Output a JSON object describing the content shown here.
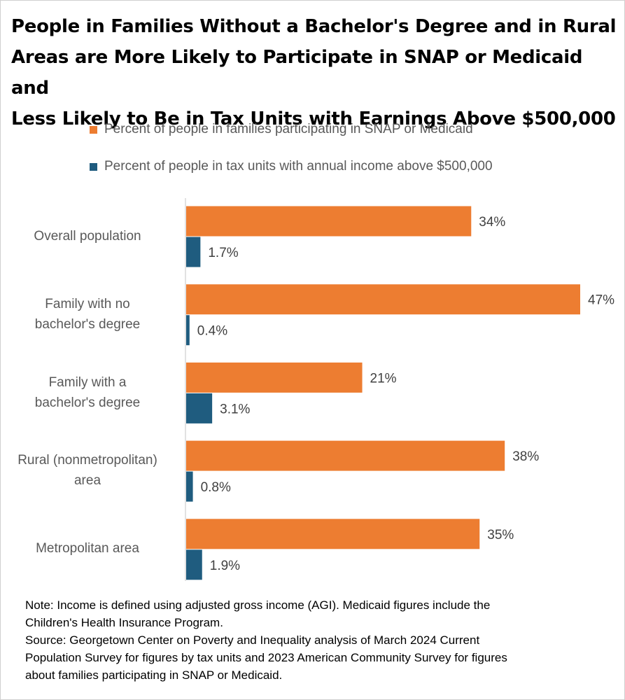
{
  "title_lines": [
    "People in Families Without a Bachelor's Degree and in Rural",
    "Areas are More Likely to Participate in SNAP or Medicaid and",
    "Less Likely to Be in Tax Units with Earnings Above $500,000"
  ],
  "legend": [
    {
      "name": "Percent of people in families participating in SNAP or Medicaid",
      "color": "#ED7D31"
    },
    {
      "name": "Percent of people in tax units with annual income above $500,000",
      "color": "#1F5C7F"
    }
  ],
  "categories_display": [
    [
      "Overall population"
    ],
    [
      "Family with no",
      "bachelor's degree"
    ],
    [
      "Family with a",
      "bachelor's degree"
    ],
    [
      "Rural (nonmetropolitan)",
      "area"
    ],
    [
      "Metropolitan area"
    ]
  ],
  "note_lines": [
    "Note: Income is defined using adjusted gross income (AGI). Medicaid figures include the",
    "Children's Health Insurance Program.",
    "Source: Georgetown Center on Poverty and Inequality analysis of March 2024 Current",
    "Population Survey for figures by tax units and 2023 American Community Survey for figures",
    "about families participating in SNAP or Medicaid."
  ],
  "chart_data": {
    "type": "bar",
    "orientation": "horizontal",
    "title": "People in Families Without a Bachelor's Degree and in Rural Areas are More Likely to Participate in SNAP or Medicaid and Less Likely to Be in Tax Units with Earnings Above $500,000",
    "categories": [
      "Overall population",
      "Family with no bachelor's degree",
      "Family with a bachelor's degree",
      "Rural (nonmetropolitan) area",
      "Metropolitan area"
    ],
    "series": [
      {
        "name": "Percent of people in families participating in SNAP or Medicaid",
        "color": "#ED7D31",
        "values": [
          34,
          47,
          21,
          38,
          35
        ],
        "labels": [
          "34%",
          "47%",
          "21%",
          "38%",
          "35%"
        ]
      },
      {
        "name": "Percent of people in tax units with annual income above $500,000",
        "color": "#1F5C7F",
        "values": [
          1.7,
          0.4,
          3.1,
          0.8,
          1.9
        ],
        "labels": [
          "1.7%",
          "0.4%",
          "3.1%",
          "0.8%",
          "1.9%"
        ]
      }
    ],
    "xlim": [
      0,
      47
    ],
    "xlabel": "",
    "ylabel": "",
    "grid": false,
    "legend_position": "top"
  }
}
